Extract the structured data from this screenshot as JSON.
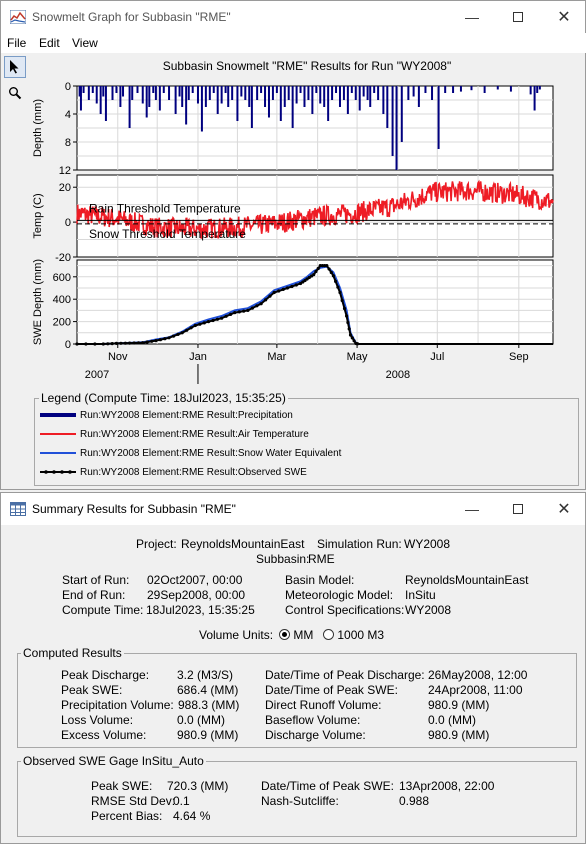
{
  "graph_window": {
    "title": "Snowmelt Graph for Subbasin \"RME\"",
    "menu": [
      "File",
      "Edit",
      "View"
    ],
    "tools": [
      "pointer-tool",
      "zoom-tool"
    ],
    "chart_title": "Subbasin Snowmelt \"RME\" Results for Run \"WY2008\"",
    "legend": {
      "title": "Legend (Compute Time: 18Jul2023, 15:35:25)",
      "items": [
        {
          "label": "Run:WY2008 Element:RME Result:Precipitation",
          "color": "#00007f"
        },
        {
          "label": "Run:WY2008 Element:RME Result:Air Temperature",
          "color": "#ee1c25"
        },
        {
          "label": "Run:WY2008 Element:RME Result:Snow Water Equivalent",
          "color": "#2050d8"
        },
        {
          "label": "Run:WY2008 Element:RME Result:Observed SWE",
          "color": "#000000"
        }
      ]
    }
  },
  "chart_data": [
    {
      "type": "bar",
      "ylabel": "Depth (mm)",
      "ylim": [
        0,
        12
      ],
      "yticks": [
        0,
        4,
        8,
        12
      ],
      "inverted": true,
      "series": [
        {
          "name": "Run:WY2008 Element:RME Result:Precipitation",
          "x_days": [
            2,
            3,
            5,
            9,
            12,
            15,
            18,
            20,
            22,
            27,
            30,
            33,
            35,
            40,
            42,
            46,
            50,
            53,
            55,
            58,
            60,
            63,
            66,
            70,
            75,
            78,
            80,
            83,
            85,
            88,
            92,
            95,
            98,
            101,
            104,
            107,
            110,
            113,
            115,
            118,
            122,
            125,
            128,
            131,
            133,
            137,
            140,
            143,
            146,
            149,
            152,
            155,
            158,
            161,
            164,
            167,
            170,
            173,
            176,
            179,
            182,
            185,
            188,
            191,
            194,
            197,
            200,
            203,
            206,
            209,
            212,
            215,
            218,
            221,
            223,
            226,
            229,
            233,
            236,
            240,
            243,
            247,
            252,
            256,
            260,
            265,
            270,
            275,
            280,
            286,
            292,
            300,
            310,
            320,
            330,
            345,
            348,
            350,
            352
          ],
          "values": [
            1.5,
            3.5,
            1,
            2,
            1,
            2.5,
            4,
            1.5,
            5,
            2,
            1,
            3,
            1.5,
            6,
            2,
            1,
            2.5,
            4.5,
            3,
            1,
            2,
            3.5,
            1,
            2,
            4,
            1.5,
            3,
            5.5,
            2,
            1,
            2.5,
            6.5,
            3,
            2,
            1,
            4,
            2.5,
            1,
            3,
            2,
            5,
            1.5,
            2,
            3,
            6,
            2,
            1,
            3,
            4.5,
            2,
            1,
            5,
            3,
            2,
            6,
            2.5,
            1,
            3,
            2,
            4,
            1,
            2.5,
            3,
            5,
            2,
            1,
            3,
            2,
            4,
            1,
            2,
            3.5,
            1.5,
            2,
            3,
            1,
            2,
            4,
            6,
            10,
            12,
            8,
            2,
            1.5,
            3,
            1,
            2,
            9,
            1,
            1,
            0.8,
            0.6,
            1,
            0.5,
            0.8,
            1.2,
            3.5,
            1,
            0.5
          ]
        }
      ]
    },
    {
      "type": "line",
      "ylabel": "Temp (C)",
      "ylim": [
        -20,
        27
      ],
      "yticks": [
        -20,
        0,
        20
      ],
      "annotations": [
        {
          "text": "Rain Threshold Temperature",
          "y": 1
        },
        {
          "text": "Snow Threshold Temperature",
          "y": -1
        }
      ],
      "series": [
        {
          "name": "Run:WY2008 Element:RME Result:Air Temperature",
          "seasonal_mean": [
            [
              0,
              5
            ],
            [
              30,
              2
            ],
            [
              60,
              -3
            ],
            [
              90,
              -4
            ],
            [
              120,
              -3
            ],
            [
              150,
              -1
            ],
            [
              180,
              3
            ],
            [
              210,
              5
            ],
            [
              240,
              9
            ],
            [
              270,
              17
            ],
            [
              300,
              18
            ],
            [
              330,
              16
            ],
            [
              360,
              12
            ]
          ],
          "amplitude": 6
        }
      ]
    },
    {
      "type": "line",
      "ylabel": "SWE Depth (mm)",
      "ylim": [
        0,
        750
      ],
      "yticks": [
        0,
        200,
        400,
        600
      ],
      "x_ticks": [
        "Nov",
        "Jan",
        "Mar",
        "May",
        "Jul",
        "Sep"
      ],
      "x_years": [
        "2007",
        "2008"
      ],
      "series": [
        {
          "name": "Run:WY2008 Element:RME Result:Snow Water Equivalent",
          "x_days": [
            0,
            20,
            30,
            40,
            50,
            60,
            70,
            80,
            90,
            100,
            110,
            120,
            130,
            140,
            150,
            160,
            170,
            175,
            180,
            185,
            190,
            195,
            200,
            205,
            208,
            212,
            214
          ],
          "values": [
            0,
            0,
            5,
            10,
            15,
            40,
            60,
            110,
            180,
            220,
            250,
            300,
            320,
            380,
            480,
            520,
            560,
            600,
            650,
            680,
            690,
            640,
            500,
            300,
            100,
            10,
            0
          ]
        },
        {
          "name": "Run:WY2008 Element:RME Result:Observed SWE",
          "x_days": [
            0,
            20,
            30,
            40,
            50,
            60,
            70,
            80,
            90,
            100,
            110,
            120,
            130,
            140,
            150,
            160,
            170,
            175,
            180,
            185,
            190,
            195,
            200,
            205,
            208,
            212,
            214
          ],
          "values": [
            0,
            0,
            5,
            8,
            12,
            30,
            55,
            100,
            165,
            200,
            230,
            280,
            300,
            360,
            460,
            500,
            540,
            580,
            620,
            700,
            700,
            610,
            460,
            250,
            80,
            5,
            0
          ]
        }
      ]
    }
  ],
  "summary_window": {
    "title": "Summary Results for Subbasin \"RME\"",
    "header": {
      "project_label": "Project:",
      "project": "ReynoldsMountainEast",
      "sim_run_label": "Simulation Run:",
      "sim_run": "WY2008",
      "subbasin_label": "Subbasin:",
      "subbasin": "RME"
    },
    "run_info": {
      "start_label": "Start of Run:",
      "start": "02Oct2007, 00:00",
      "end_label": "End of Run:",
      "end": "29Sep2008, 00:00",
      "compute_label": "Compute Time:",
      "compute": "18Jul2023, 15:35:25",
      "basin_label": "Basin Model:",
      "basin": "ReynoldsMountainEast",
      "met_label": "Meteorologic Model:",
      "met": "InSitu",
      "control_label": "Control Specifications:",
      "control": "WY2008"
    },
    "volume_units": {
      "label": "Volume Units:",
      "options": [
        "MM",
        "1000 M3"
      ],
      "selected": "MM"
    },
    "computed": {
      "title": "Computed Results",
      "peak_discharge_label": "Peak Discharge:",
      "peak_discharge": "3.2 (M3/S)",
      "peak_swe_label": "Peak SWE:",
      "peak_swe": "686.4 (MM)",
      "precip_label": "Precipitation Volume:",
      "precip": "988.3 (MM)",
      "loss_label": "Loss Volume:",
      "loss": "0.0 (MM)",
      "excess_label": "Excess Volume:",
      "excess": "980.9 (MM)",
      "dt_peak_discharge_label": "Date/Time of Peak Discharge:",
      "dt_peak_discharge": "26May2008, 12:00",
      "dt_peak_swe_label": "Date/Time of Peak SWE:",
      "dt_peak_swe": "24Apr2008, 11:00",
      "direct_runoff_label": "Direct Runoff Volume:",
      "direct_runoff": "980.9 (MM)",
      "baseflow_label": "Baseflow Volume:",
      "baseflow": "0.0 (MM)",
      "discharge_vol_label": "Discharge Volume:",
      "discharge_vol": "980.9 (MM)"
    },
    "observed": {
      "title": "Observed SWE Gage InSitu_Auto",
      "peak_swe_label": "Peak SWE:",
      "peak_swe": "720.3 (MM)",
      "rmse_label": "RMSE Std Dev:",
      "rmse": "0.1",
      "bias_label": "Percent Bias:",
      "bias": "4.64 %",
      "dt_peak_swe_label": "Date/Time of Peak SWE:",
      "dt_peak_swe": "13Apr2008, 22:00",
      "nash_label": "Nash-Sutcliffe:",
      "nash": "0.988"
    }
  }
}
